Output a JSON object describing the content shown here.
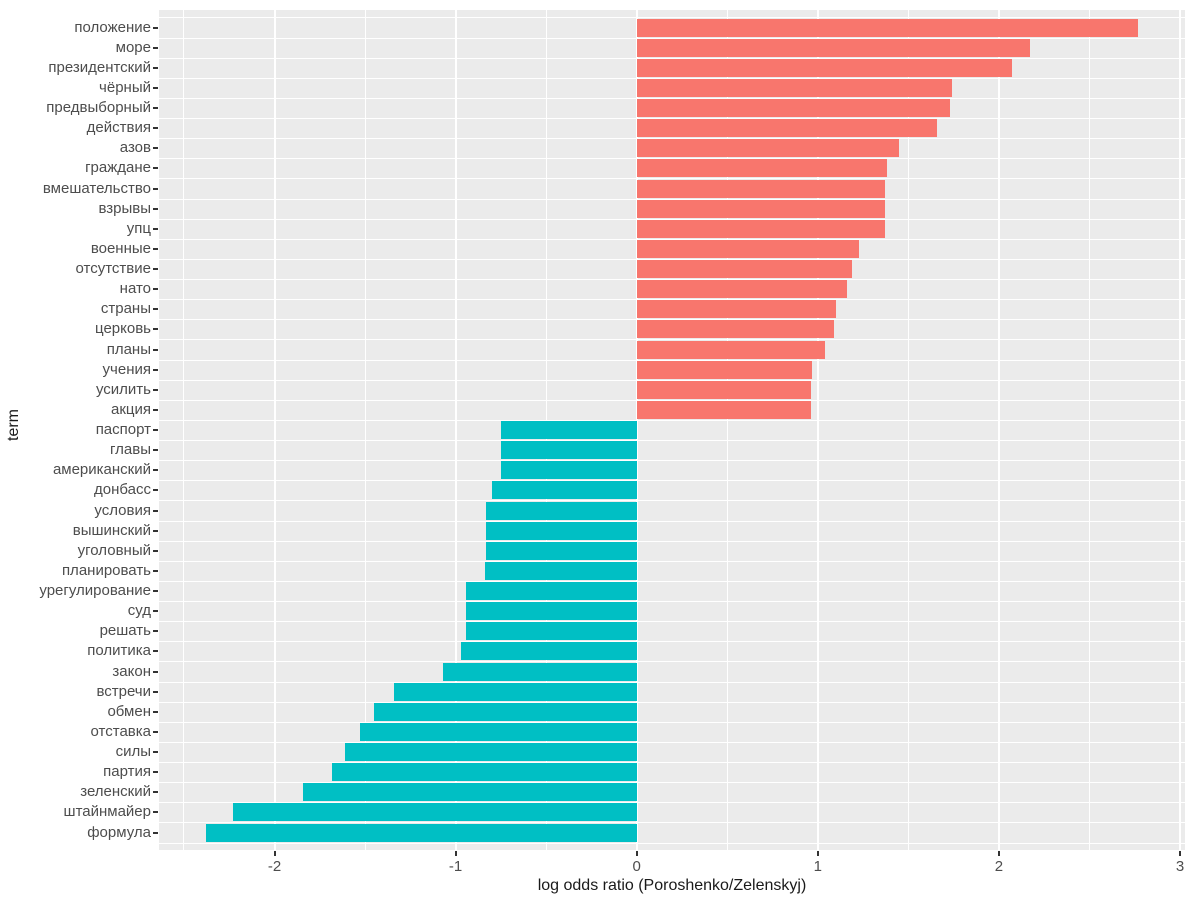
{
  "chart_data": {
    "type": "bar",
    "orientation": "horizontal",
    "xlabel": "log odds ratio (Poroshenko/Zelenskyj)",
    "ylabel": "term",
    "xlim": [
      -2.6375,
      3.0275
    ],
    "x_major_ticks": [
      -2,
      -1,
      0,
      1,
      2,
      3
    ],
    "x_minor_ticks": [
      -2.5,
      -1.5,
      -0.5,
      0.5,
      1.5,
      2.5
    ],
    "grid": true,
    "legend": "none",
    "colors": {
      "positive_bar": "#F8766D",
      "negative_bar": "#00BFC4",
      "panel_background": "#EBEBEB",
      "gridline": "#FFFFFF",
      "tick_text": "#4d4d4d",
      "title_text": "#1a1a1a"
    },
    "terms": [
      {
        "term": "положение",
        "value": 2.77
      },
      {
        "term": "море",
        "value": 2.17
      },
      {
        "term": "президентский",
        "value": 2.07
      },
      {
        "term": "чёрный",
        "value": 1.74
      },
      {
        "term": "предвыборный",
        "value": 1.73
      },
      {
        "term": "действия",
        "value": 1.66
      },
      {
        "term": "азов",
        "value": 1.45
      },
      {
        "term": "граждане",
        "value": 1.38
      },
      {
        "term": "вмешательство",
        "value": 1.37
      },
      {
        "term": "взрывы",
        "value": 1.37
      },
      {
        "term": "упц",
        "value": 1.37
      },
      {
        "term": "военные",
        "value": 1.23
      },
      {
        "term": "отсутствие",
        "value": 1.19
      },
      {
        "term": "нато",
        "value": 1.16
      },
      {
        "term": "страны",
        "value": 1.1
      },
      {
        "term": "церковь",
        "value": 1.09
      },
      {
        "term": "планы",
        "value": 1.04
      },
      {
        "term": "учения",
        "value": 0.97
      },
      {
        "term": "усилить",
        "value": 0.96
      },
      {
        "term": "акция",
        "value": 0.96
      },
      {
        "term": "паспорт",
        "value": -0.75
      },
      {
        "term": "главы",
        "value": -0.75
      },
      {
        "term": "американский",
        "value": -0.75
      },
      {
        "term": "донбасс",
        "value": -0.8
      },
      {
        "term": "условия",
        "value": -0.83
      },
      {
        "term": "вышинский",
        "value": -0.83
      },
      {
        "term": "уголовный",
        "value": -0.83
      },
      {
        "term": "планировать",
        "value": -0.84
      },
      {
        "term": "урегулирование",
        "value": -0.94
      },
      {
        "term": "суд",
        "value": -0.94
      },
      {
        "term": "решать",
        "value": -0.94
      },
      {
        "term": "политика",
        "value": -0.97
      },
      {
        "term": "закон",
        "value": -1.07
      },
      {
        "term": "встречи",
        "value": -1.34
      },
      {
        "term": "обмен",
        "value": -1.45
      },
      {
        "term": "отставка",
        "value": -1.53
      },
      {
        "term": "силы",
        "value": -1.61
      },
      {
        "term": "партия",
        "value": -1.68
      },
      {
        "term": "зеленский",
        "value": -1.84
      },
      {
        "term": "штайнмайер",
        "value": -2.23
      },
      {
        "term": "формула",
        "value": -2.38
      }
    ]
  }
}
